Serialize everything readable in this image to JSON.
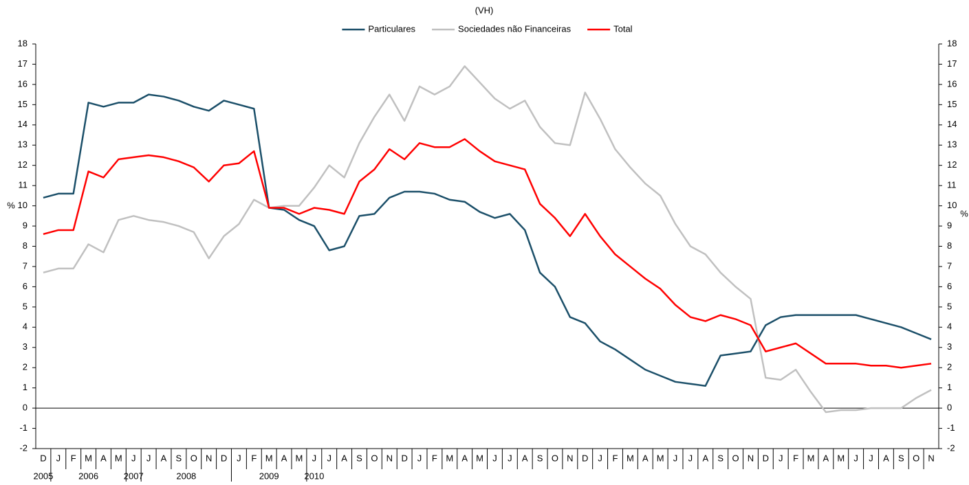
{
  "chart_data": {
    "type": "line",
    "subtitle": "(VH)",
    "ylabel": "%",
    "y2label": "%",
    "categories": [
      "D",
      "J",
      "F",
      "M",
      "A",
      "M",
      "J",
      "J",
      "A",
      "S",
      "O",
      "N",
      "D",
      "J",
      "F",
      "M",
      "A",
      "M",
      "J",
      "J",
      "A",
      "S",
      "O",
      "N",
      "D",
      "J",
      "F",
      "M",
      "A",
      "M",
      "J",
      "J",
      "A",
      "S",
      "O",
      "N",
      "D",
      "J",
      "F",
      "M",
      "A",
      "M",
      "J",
      "J",
      "A",
      "S",
      "O",
      "N",
      "D",
      "J",
      "F",
      "M",
      "A",
      "M",
      "J",
      "J",
      "A",
      "S",
      "O",
      "N"
    ],
    "years": [
      "2005",
      "2006",
      "2007",
      "2008",
      "2009",
      "2010"
    ],
    "series": [
      {
        "name": "Particulares",
        "color": "#1b4f69",
        "values": [
          10.4,
          10.6,
          10.6,
          15.1,
          14.9,
          15.1,
          15.1,
          15.5,
          15.4,
          15.2,
          14.9,
          14.7,
          15.2,
          15.0,
          14.8,
          9.9,
          9.8,
          9.3,
          9.0,
          7.8,
          8.0,
          9.5,
          9.6,
          10.4,
          10.7,
          10.7,
          10.6,
          10.3,
          10.2,
          9.7,
          9.4,
          9.6,
          8.8,
          6.7,
          6.0,
          4.5,
          4.2,
          3.3,
          2.9,
          2.4,
          1.9,
          1.6,
          1.3,
          1.2,
          1.1,
          2.6,
          2.7,
          2.8,
          4.1,
          4.5,
          4.6,
          4.6,
          4.6,
          4.6,
          4.6,
          4.4,
          4.2,
          4.0,
          3.7,
          3.4
        ]
      },
      {
        "name": "Sociedades não Financeiras",
        "color": "#c0c0c0",
        "values": [
          6.7,
          6.9,
          6.9,
          8.1,
          7.7,
          9.3,
          9.5,
          9.3,
          9.2,
          9.0,
          8.7,
          7.4,
          8.5,
          9.1,
          10.3,
          9.9,
          10.0,
          10.0,
          10.9,
          12.0,
          11.4,
          13.1,
          14.4,
          15.5,
          14.2,
          15.9,
          15.5,
          15.9,
          16.9,
          16.1,
          15.3,
          14.8,
          15.2,
          13.9,
          13.1,
          13.0,
          15.6,
          14.3,
          12.8,
          11.9,
          11.1,
          10.5,
          9.1,
          8.0,
          7.6,
          6.7,
          6.0,
          5.4,
          1.5,
          1.4,
          1.9,
          0.8,
          -0.2,
          -0.1,
          -0.1,
          0.0,
          0.0,
          0.0,
          0.5,
          0.9
        ]
      },
      {
        "name": "Total",
        "color": "#ff0000",
        "values": [
          8.6,
          8.8,
          8.8,
          11.7,
          11.4,
          12.3,
          12.4,
          12.5,
          12.4,
          12.2,
          11.9,
          11.2,
          12.0,
          12.1,
          12.7,
          9.9,
          9.9,
          9.6,
          9.9,
          9.8,
          9.6,
          11.2,
          11.8,
          12.8,
          12.3,
          13.1,
          12.9,
          12.9,
          13.3,
          12.7,
          12.2,
          12.0,
          11.8,
          10.1,
          9.4,
          8.5,
          9.6,
          8.5,
          7.6,
          7.0,
          6.4,
          5.9,
          5.1,
          4.5,
          4.3,
          4.6,
          4.4,
          4.1,
          2.8,
          3.0,
          3.2,
          2.7,
          2.2,
          2.2,
          2.2,
          2.1,
          2.1,
          2.0,
          2.1,
          2.2
        ]
      }
    ],
    "ylim": [
      -2,
      18
    ],
    "yticks": [
      -2,
      -1,
      0,
      1,
      2,
      3,
      4,
      5,
      6,
      7,
      8,
      9,
      10,
      11,
      12,
      13,
      14,
      15,
      16,
      17,
      18
    ],
    "y2lim": [
      -2,
      18
    ],
    "y2ticks": [
      -2,
      -1,
      0,
      1,
      2,
      3,
      4,
      5,
      6,
      7,
      8,
      9,
      10,
      11,
      12,
      13,
      14,
      15,
      16,
      17,
      18
    ],
    "legend": "top"
  }
}
